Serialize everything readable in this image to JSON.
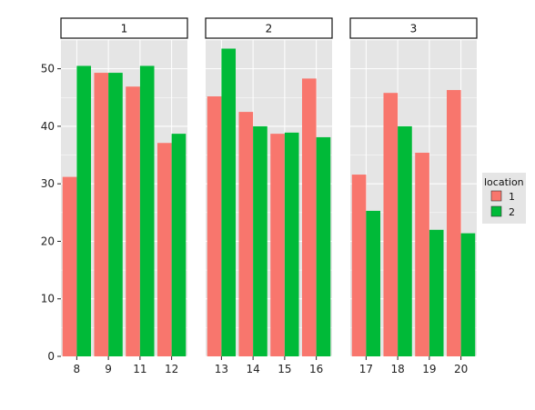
{
  "chart_data": {
    "type": "bar",
    "layout": "faceted",
    "ylim": [
      0,
      55
    ],
    "yticks": [
      0,
      10,
      20,
      30,
      40,
      50
    ],
    "legend": {
      "title": "location",
      "position": "right",
      "entries": [
        "1",
        "2"
      ]
    },
    "colors": {
      "1": "#f8766d",
      "2": "#00ba38",
      "panel": "#e5e5e5",
      "grid": "#ffffff"
    },
    "facets": [
      {
        "label": "1",
        "categories": [
          "8",
          "9",
          "11",
          "12"
        ],
        "series": [
          {
            "name": "1",
            "values": [
              31.2,
              49.3,
              46.9,
              37.1
            ]
          },
          {
            "name": "2",
            "values": [
              50.5,
              49.3,
              50.5,
              38.7
            ]
          }
        ]
      },
      {
        "label": "2",
        "categories": [
          "13",
          "14",
          "15",
          "16"
        ],
        "series": [
          {
            "name": "1",
            "values": [
              45.2,
              42.5,
              38.7,
              48.3
            ]
          },
          {
            "name": "2",
            "values": [
              53.5,
              40.0,
              38.9,
              38.1
            ]
          }
        ]
      },
      {
        "label": "3",
        "categories": [
          "17",
          "18",
          "19",
          "20"
        ],
        "series": [
          {
            "name": "1",
            "values": [
              31.6,
              45.8,
              35.4,
              46.3
            ]
          },
          {
            "name": "2",
            "values": [
              25.3,
              40.0,
              22.0,
              21.4
            ]
          }
        ]
      }
    ]
  }
}
